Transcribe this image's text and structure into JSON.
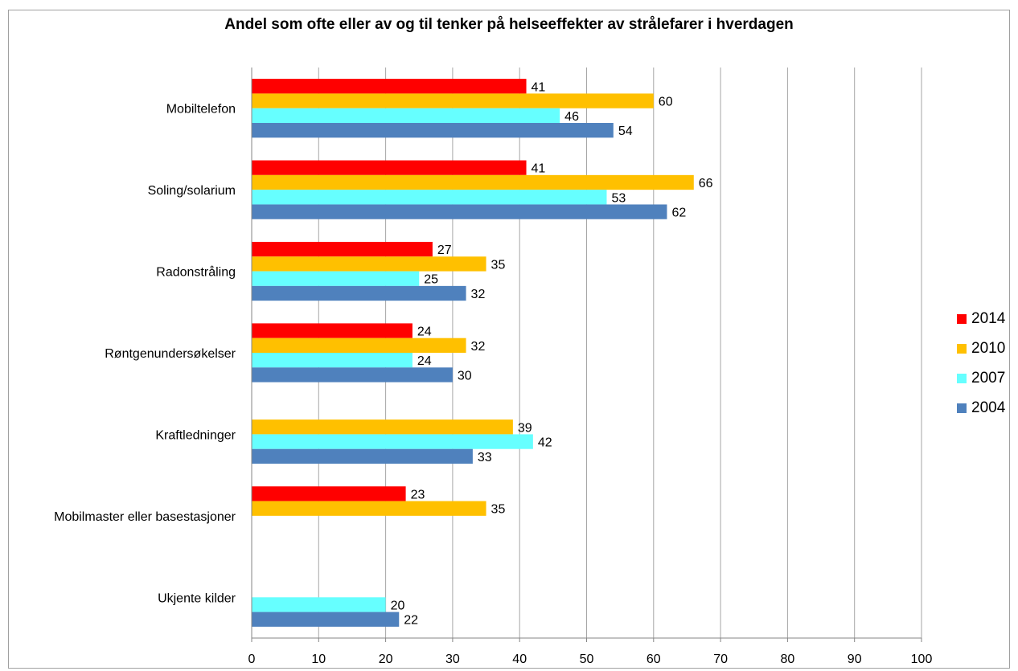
{
  "chart_data": {
    "type": "bar",
    "orientation": "horizontal",
    "title": "Andel som ofte eller av og til tenker på helseeffekter av strålefarer i hverdagen",
    "categories": [
      "Mobiltelefon",
      "Soling/solarium",
      "Radonstråling",
      "Røntgenundersøkelser",
      "Kraftledninger",
      "Mobilmaster eller basestasjoner",
      "Ukjente kilder"
    ],
    "series": [
      {
        "name": "2014",
        "color": "#ff0000",
        "values": [
          41,
          41,
          27,
          24,
          null,
          23,
          null
        ]
      },
      {
        "name": "2010",
        "color": "#ffc000",
        "values": [
          60,
          66,
          35,
          32,
          39,
          35,
          null
        ]
      },
      {
        "name": "2007",
        "color": "#66ffff",
        "values": [
          46,
          53,
          25,
          24,
          42,
          null,
          20
        ]
      },
      {
        "name": "2004",
        "color": "#4f81bd",
        "values": [
          54,
          62,
          32,
          30,
          33,
          null,
          22
        ]
      }
    ],
    "xlim": [
      0,
      100
    ],
    "xticks": [
      0,
      10,
      20,
      30,
      40,
      50,
      60,
      70,
      80,
      90,
      100
    ],
    "grid": "vertical",
    "legend": "right"
  }
}
